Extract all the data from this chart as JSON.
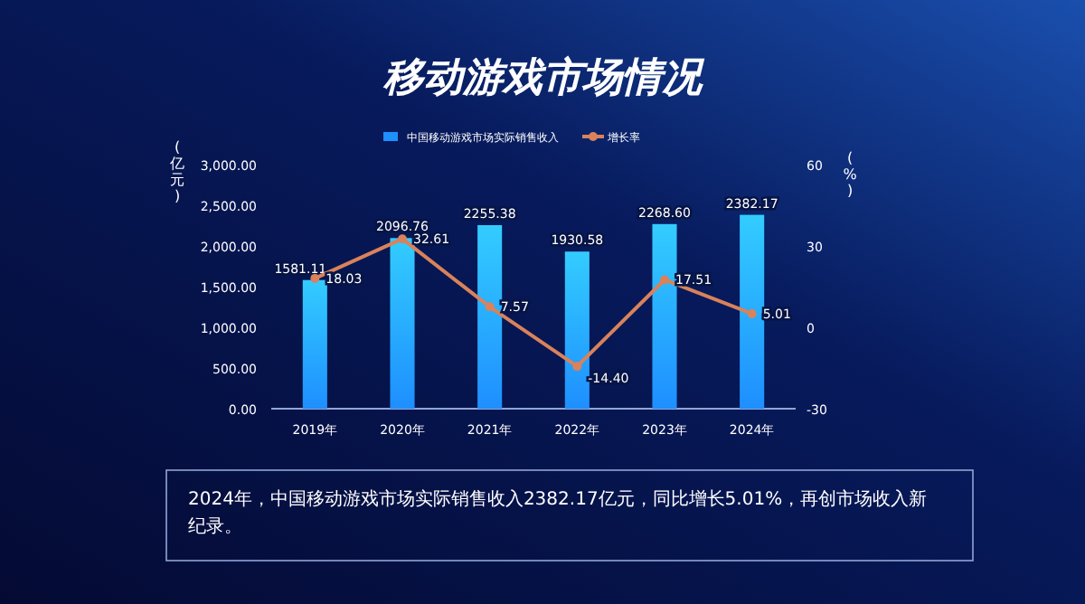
{
  "chart_data": {
    "type": "bar",
    "title": "移动游戏市场情况",
    "categories": [
      "2019年",
      "2020年",
      "2021年",
      "2022年",
      "2023年",
      "2024年"
    ],
    "series": [
      {
        "name": "中国移动游戏市场实际销售收入",
        "color": "#1e8fff",
        "values": [
          1581.11,
          2096.76,
          2255.38,
          1930.58,
          2268.6,
          2382.17
        ],
        "value_labels": [
          "1581.11",
          "2096.76",
          "2255.38",
          "1930.58",
          "2268.60",
          "2382.17"
        ]
      },
      {
        "name": "增长率",
        "type": "line",
        "axis": "y2",
        "color": "#d9825b",
        "values": [
          18.03,
          32.61,
          7.57,
          -14.4,
          17.51,
          5.01
        ],
        "value_labels": [
          "18.03",
          "32.61",
          "7.57",
          "-14.40",
          "17.51",
          "5.01"
        ]
      }
    ],
    "ylabel": "(亿元)",
    "y2label": "(%)",
    "ylim": [
      0,
      3000
    ],
    "yticks": [
      {
        "value": 0,
        "label": "0.00"
      },
      {
        "value": 500,
        "label": "500.00"
      },
      {
        "value": 1000,
        "label": "1,000.00"
      },
      {
        "value": 1500,
        "label": "1,500.00"
      },
      {
        "value": 2000,
        "label": "2,000.00"
      },
      {
        "value": 2500,
        "label": "2,500.00"
      },
      {
        "value": 3000,
        "label": "3,000.00"
      }
    ],
    "y2lim": [
      -30,
      60
    ],
    "y2ticks": [
      -30,
      0,
      30,
      60
    ],
    "legend": "top",
    "marker": "circle",
    "annotations": [
      "2024年，中国移动游戏市场实际销售收入2382.17亿元，同比增长5.01%，再创市场收入新纪录。"
    ]
  }
}
